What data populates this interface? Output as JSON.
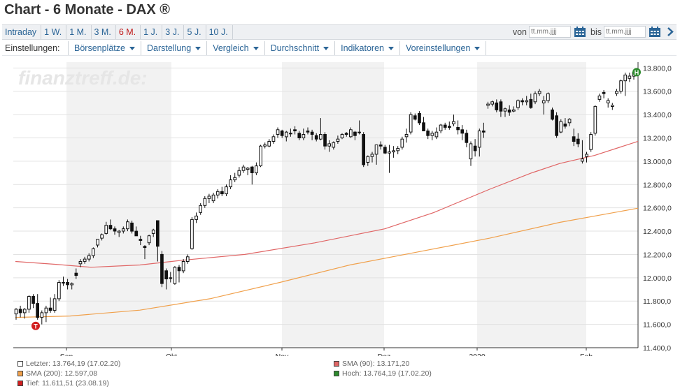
{
  "title": "Chart - 6 Monate - DAX ®",
  "tabs": [
    {
      "label": "Intraday",
      "active": false
    },
    {
      "label": "1 W.",
      "active": false
    },
    {
      "label": "1 M.",
      "active": false
    },
    {
      "label": "3 M.",
      "active": false
    },
    {
      "label": "6 M.",
      "active": true
    },
    {
      "label": "1 J.",
      "active": false
    },
    {
      "label": "3 J.",
      "active": false
    },
    {
      "label": "5 J.",
      "active": false
    },
    {
      "label": "10 J.",
      "active": false
    }
  ],
  "date_range": {
    "from_label": "von",
    "from_placeholder": "tt.mm.jjjj",
    "to_label": "bis",
    "to_placeholder": "tt.mm.jjjj"
  },
  "settings": {
    "label": "Einstellungen:",
    "menus": [
      "Börsenplätze",
      "Darstellung",
      "Vergleich",
      "Durchschnitt",
      "Indikatoren",
      "Voreinstellungen"
    ]
  },
  "watermark": "finanztreff.de:",
  "colors": {
    "link": "#2a6496",
    "active_tab": "#c01818",
    "sma90": "#e06666",
    "sma200": "#f0a04b",
    "high_marker": "#2e8b2e",
    "low_marker": "#d21f1f",
    "band": "#f2f2f2"
  },
  "legend": [
    {
      "text": "Letzter: 13.764,19 (17.02.20)",
      "color": "#ffffff"
    },
    {
      "text": "SMA (90): 13.171,20",
      "color": "#e06666"
    },
    {
      "text": "SMA (200): 12.597,08",
      "color": "#f0a04b"
    },
    {
      "text": "Hoch: 13.764,19 (17.02.20)",
      "color": "#2e8b2e"
    },
    {
      "text": "Tief: 11.611,51 (23.08.19)",
      "color": "#d21f1f"
    }
  ],
  "markers": {
    "high": "H",
    "low": "T"
  },
  "chart_data": {
    "type": "candlestick",
    "x_labels": [
      "Sep",
      "Okt",
      "Nov",
      "Dez",
      "2020",
      "Feb"
    ],
    "y_ticks": [
      "11.400,0",
      "11.600,0",
      "11.800,0",
      "12.000,0",
      "12.200,0",
      "12.400,0",
      "12.600,0",
      "12.800,0",
      "13.000,0",
      "13.200,0",
      "13.400,0",
      "13.600,0",
      "13.800,0"
    ],
    "y_range": [
      11400,
      13850
    ],
    "candles": [
      [
        11690,
        11740,
        11640,
        11730
      ],
      [
        11730,
        11760,
        11660,
        11700
      ],
      [
        11700,
        11740,
        11650,
        11730
      ],
      [
        11730,
        11850,
        11700,
        11840
      ],
      [
        11840,
        11860,
        11740,
        11780
      ],
      [
        11780,
        11860,
        11640,
        11660
      ],
      [
        11660,
        11720,
        11600,
        11700
      ],
      [
        11700,
        11760,
        11620,
        11740
      ],
      [
        11740,
        11830,
        11700,
        11720
      ],
      [
        11720,
        11860,
        11700,
        11820
      ],
      [
        11820,
        11980,
        11800,
        11960
      ],
      [
        11960,
        12010,
        11930,
        11960
      ],
      [
        11960,
        11990,
        11900,
        11940
      ],
      [
        11940,
        11960,
        11900,
        11950
      ],
      [
        12040,
        12080,
        11990,
        12020
      ],
      [
        12120,
        12160,
        12090,
        12140
      ],
      [
        12140,
        12180,
        12120,
        12160
      ],
      [
        12160,
        12210,
        12140,
        12190
      ],
      [
        12190,
        12260,
        12170,
        12250
      ],
      [
        12280,
        12330,
        12260,
        12330
      ],
      [
        12340,
        12380,
        12320,
        12370
      ],
      [
        12380,
        12480,
        12370,
        12450
      ],
      [
        12450,
        12500,
        12410,
        12420
      ],
      [
        12420,
        12440,
        12370,
        12400
      ],
      [
        12390,
        12410,
        12350,
        12400
      ],
      [
        12400,
        12440,
        12380,
        12420
      ],
      [
        12420,
        12500,
        12400,
        12480
      ],
      [
        12470,
        12490,
        12380,
        12400
      ],
      [
        12400,
        12440,
        12360,
        12360
      ],
      [
        12330,
        12360,
        12280,
        12320
      ],
      [
        12270,
        12280,
        12160,
        12260
      ],
      [
        12300,
        12370,
        12280,
        12360
      ],
      [
        12380,
        12420,
        12350,
        12410
      ],
      [
        12490,
        12490,
        12140,
        12270
      ],
      [
        12200,
        12230,
        11920,
        11950
      ],
      [
        12060,
        12080,
        11900,
        11990
      ],
      [
        12000,
        12050,
        11960,
        12000
      ],
      [
        11950,
        12100,
        11940,
        12090
      ],
      [
        12090,
        12110,
        11960,
        12060
      ],
      [
        12060,
        12160,
        12040,
        12140
      ],
      [
        12140,
        12200,
        12120,
        12180
      ],
      [
        12250,
        12520,
        12240,
        12500
      ],
      [
        12500,
        12560,
        12470,
        12530
      ],
      [
        12560,
        12640,
        12540,
        12620
      ],
      [
        12620,
        12700,
        12600,
        12680
      ],
      [
        12680,
        12720,
        12640,
        12700
      ],
      [
        12660,
        12730,
        12640,
        12710
      ],
      [
        12710,
        12760,
        12680,
        12740
      ],
      [
        12740,
        12780,
        12700,
        12720
      ],
      [
        12720,
        12800,
        12700,
        12780
      ],
      [
        12780,
        12880,
        12760,
        12840
      ],
      [
        12840,
        12900,
        12820,
        12860
      ],
      [
        12880,
        12950,
        12860,
        12920
      ],
      [
        12920,
        12970,
        12900,
        12950
      ],
      [
        12930,
        12950,
        12880,
        12940
      ],
      [
        12950,
        12960,
        12800,
        12900
      ],
      [
        12900,
        12990,
        12880,
        12960
      ],
      [
        12960,
        13140,
        12950,
        13130
      ],
      [
        13130,
        13160,
        13110,
        13140
      ],
      [
        13130,
        13190,
        13120,
        13170
      ],
      [
        13170,
        13230,
        13150,
        13210
      ],
      [
        13230,
        13290,
        13200,
        13270
      ],
      [
        13260,
        13270,
        13200,
        13220
      ],
      [
        13210,
        13260,
        13170,
        13250
      ],
      [
        13240,
        13280,
        13210,
        13240
      ],
      [
        13270,
        13300,
        13230,
        13260
      ],
      [
        13240,
        13260,
        13180,
        13200
      ],
      [
        13200,
        13280,
        13180,
        13230
      ],
      [
        13260,
        13290,
        13230,
        13250
      ],
      [
        13250,
        13270,
        13180,
        13230
      ],
      [
        13220,
        13240,
        13170,
        13190
      ],
      [
        13190,
        13370,
        13180,
        13230
      ],
      [
        13230,
        13250,
        13100,
        13130
      ],
      [
        13130,
        13180,
        13080,
        13150
      ],
      [
        13120,
        13170,
        13100,
        13160
      ],
      [
        13170,
        13220,
        13150,
        13190
      ],
      [
        13200,
        13240,
        13190,
        13230
      ],
      [
        13240,
        13250,
        13210,
        13230
      ],
      [
        13210,
        13290,
        13200,
        13270
      ],
      [
        13250,
        13260,
        13180,
        13220
      ],
      [
        13250,
        13350,
        13230,
        13250
      ],
      [
        13230,
        13250,
        12950,
        12970
      ],
      [
        12990,
        13050,
        12960,
        13040
      ],
      [
        13040,
        13080,
        12990,
        13060
      ],
      [
        13060,
        13140,
        12970,
        13140
      ],
      [
        13140,
        13170,
        13100,
        13130
      ],
      [
        13120,
        13140,
        13060,
        13070
      ],
      [
        13070,
        13140,
        12900,
        13080
      ],
      [
        13080,
        13130,
        13030,
        13090
      ],
      [
        13090,
        13130,
        13060,
        13110
      ],
      [
        13120,
        13210,
        13100,
        13190
      ],
      [
        13210,
        13280,
        13160,
        13230
      ],
      [
        13250,
        13420,
        13230,
        13400
      ],
      [
        13390,
        13410,
        13350,
        13360
      ],
      [
        13410,
        13430,
        13310,
        13330
      ],
      [
        13330,
        13380,
        13260,
        13260
      ],
      [
        13260,
        13280,
        13190,
        13220
      ],
      [
        13220,
        13260,
        13180,
        13240
      ],
      [
        13210,
        13290,
        13190,
        13250
      ],
      [
        13260,
        13320,
        13240,
        13310
      ],
      [
        13310,
        13330,
        13270,
        13290
      ],
      [
        13300,
        13340,
        13270,
        13290
      ],
      [
        13320,
        13400,
        13300,
        13340
      ],
      [
        13290,
        13350,
        13230,
        13270
      ],
      [
        13270,
        13310,
        13180,
        13240
      ],
      [
        13240,
        13270,
        13120,
        13160
      ],
      [
        13020,
        13170,
        12960,
        13150
      ],
      [
        13130,
        13190,
        13040,
        13090
      ],
      [
        13120,
        13280,
        13040,
        13260
      ],
      [
        13260,
        13330,
        13200,
        13250
      ],
      [
        13480,
        13510,
        13450,
        13490
      ],
      [
        13490,
        13520,
        13470,
        13510
      ],
      [
        13500,
        13530,
        13420,
        13440
      ],
      [
        13510,
        13530,
        13380,
        13430
      ],
      [
        13430,
        13460,
        13380,
        13450
      ],
      [
        13440,
        13480,
        13390,
        13420
      ],
      [
        13430,
        13470,
        13420,
        13440
      ],
      [
        13460,
        13530,
        13440,
        13520
      ],
      [
        13520,
        13540,
        13480,
        13510
      ],
      [
        13510,
        13560,
        13480,
        13520
      ],
      [
        13530,
        13580,
        13450,
        13460
      ],
      [
        13510,
        13600,
        13490,
        13580
      ],
      [
        13580,
        13620,
        13560,
        13600
      ],
      [
        13500,
        13560,
        13400,
        13520
      ],
      [
        13520,
        13590,
        13500,
        13580
      ],
      [
        13440,
        13460,
        13350,
        13360
      ],
      [
        13390,
        13420,
        13200,
        13220
      ],
      [
        13250,
        13360,
        13240,
        13340
      ],
      [
        13320,
        13370,
        13280,
        13300
      ],
      [
        13330,
        13370,
        13300,
        13360
      ],
      [
        13210,
        13280,
        13130,
        13170
      ],
      [
        13190,
        13240,
        13120,
        13150
      ],
      [
        13000,
        13180,
        12980,
        13020
      ],
      [
        13040,
        13080,
        12990,
        13060
      ],
      [
        13100,
        13250,
        13080,
        13230
      ],
      [
        13240,
        13480,
        13220,
        13470
      ],
      [
        13530,
        13580,
        13510,
        13560
      ],
      [
        13590,
        13610,
        13540,
        13580
      ],
      [
        13500,
        13540,
        13460,
        13520
      ],
      [
        13470,
        13500,
        13440,
        13480
      ],
      [
        13580,
        13620,
        13560,
        13600
      ],
      [
        13600,
        13700,
        13580,
        13690
      ],
      [
        13690,
        13760,
        13560,
        13740
      ],
      [
        13710,
        13760,
        13680,
        13730
      ],
      [
        13730,
        13780,
        13700,
        13764
      ]
    ]
  }
}
